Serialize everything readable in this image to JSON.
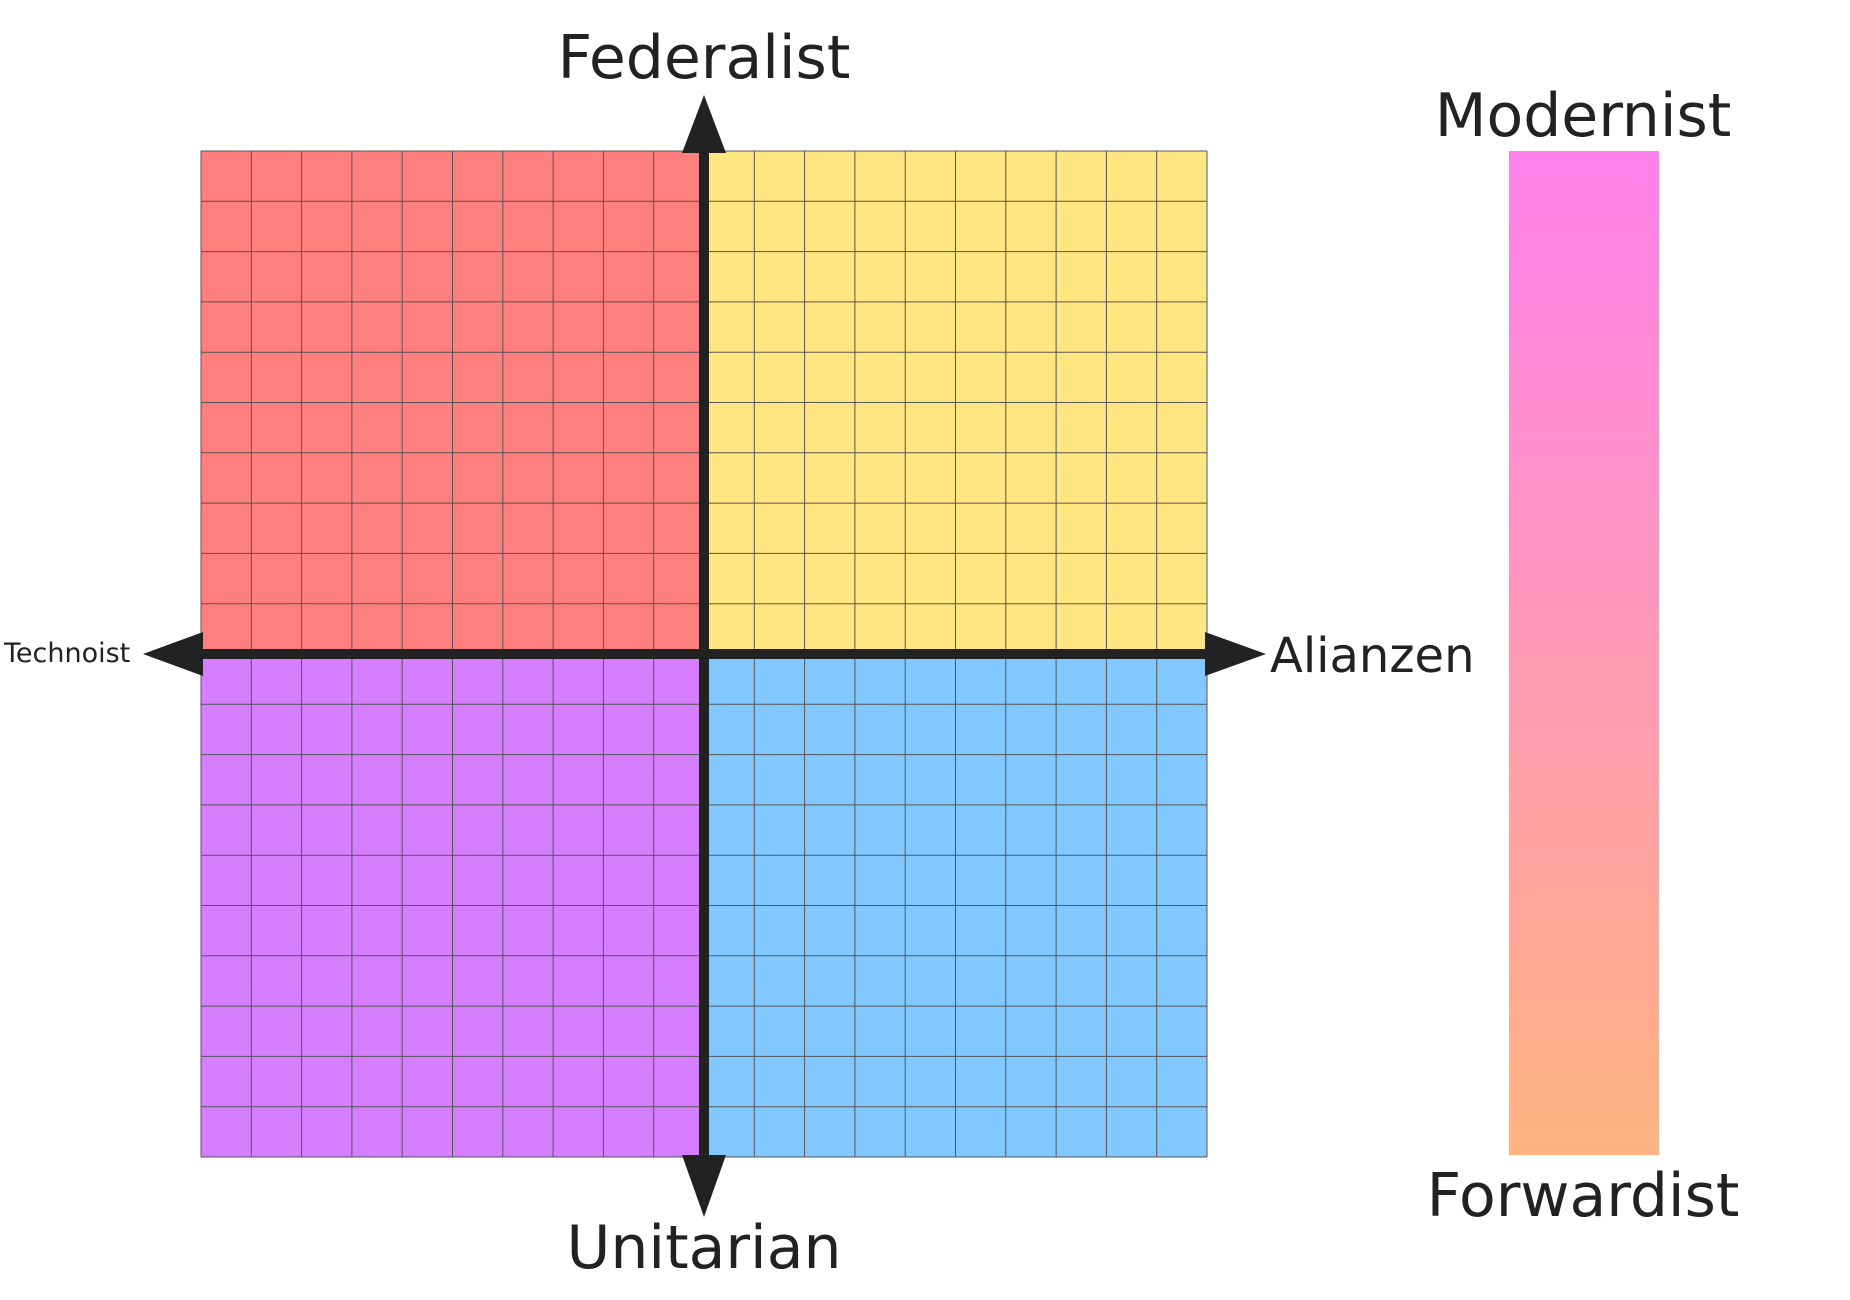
{
  "axes": {
    "top_label": "Federalist",
    "bottom_label": "Unitarian",
    "left_label": "Technoist",
    "right_label": "Alianzen"
  },
  "scale": {
    "top_label": "Modernist",
    "bottom_label": "Forwardist",
    "top_color": "#ff80ec",
    "bottom_color": "#ffb380"
  },
  "quadrants": {
    "top_left_color": "#ff7f7f",
    "top_right_color": "#ffe680",
    "bottom_left_color": "#d57fff",
    "bottom_right_color": "#80c8ff"
  },
  "grid": {
    "cells_per_quadrant_side": 10,
    "line_color": "#555555"
  },
  "axis_color": "#222222"
}
